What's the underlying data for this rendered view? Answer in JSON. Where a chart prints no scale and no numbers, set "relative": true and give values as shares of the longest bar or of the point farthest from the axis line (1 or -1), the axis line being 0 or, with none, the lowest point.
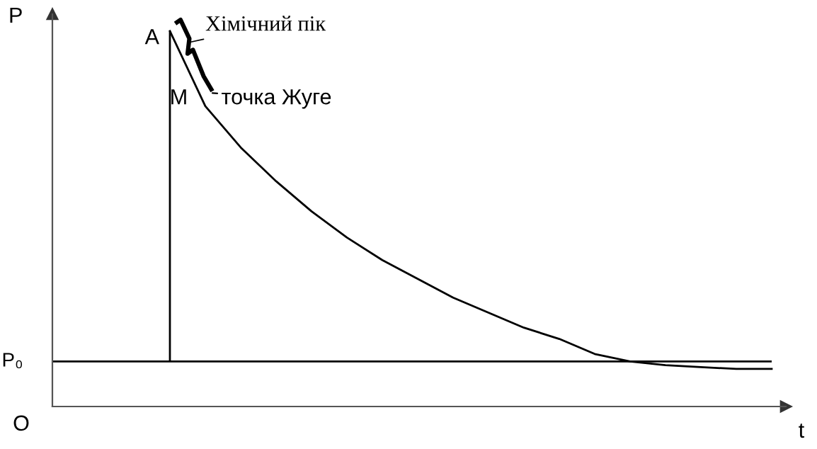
{
  "chart_data": {
    "type": "line",
    "relative": true,
    "xlabel": "t",
    "categories": [
      null,
      null,
      null,
      null,
      null,
      null,
      null,
      null,
      null,
      null,
      null,
      null,
      null,
      null,
      null,
      null,
      null,
      null
    ],
    "series": [
      {
        "color": "#000000",
        "values": [
          1.0,
          0.8,
          0.69,
          0.6,
          0.52,
          0.45,
          0.39,
          0.34,
          0.29,
          0.25,
          0.21,
          0.18,
          0.14,
          0.12,
          0.11,
          0.105,
          0.1,
          0.1
        ]
      }
    ],
    "ref_lines": [
      {
        "axis": "y",
        "value": 0.12,
        "label": "P₀",
        "color": "#000000"
      }
    ],
    "annotations": [
      "A",
      "M",
      "Хімічний пік",
      "точка Жуге",
      "O",
      "P"
    ],
    "tick_labels": false
  }
}
